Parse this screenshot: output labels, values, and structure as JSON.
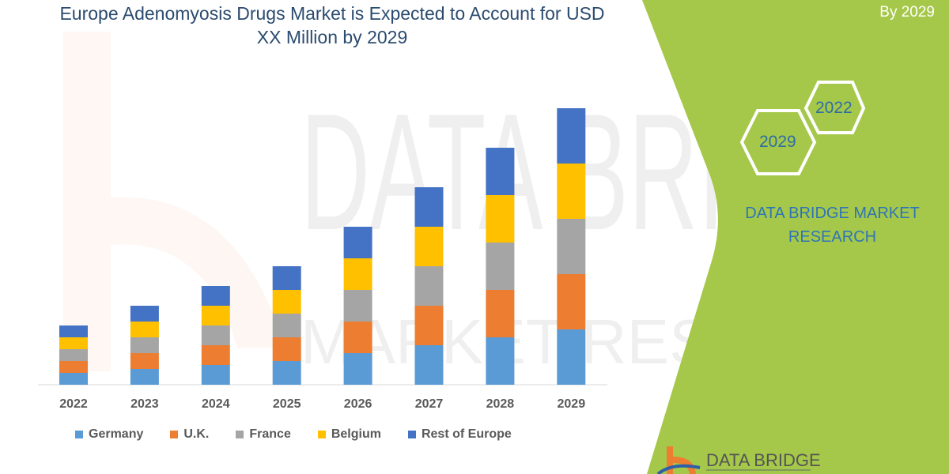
{
  "header": {
    "title_line1": "Europe Adenomyosis Drugs Market is Expected to Account for USD",
    "title_line2": "XX Million by 2029",
    "by_label": "By 2029"
  },
  "side_panel": {
    "hex_years": [
      "2022",
      "2029"
    ],
    "brand": "DATA BRIDGE MARKET RESEARCH",
    "logo_text": "DATA BRIDGE",
    "panel_color": "#a5c84a"
  },
  "chart_data": {
    "type": "bar",
    "stacked": true,
    "title": "Europe Adenomyosis Drugs Market is Expected to Account for USD XX Million by 2029",
    "categories": [
      "2022",
      "2023",
      "2024",
      "2025",
      "2026",
      "2027",
      "2028",
      "2029"
    ],
    "series": [
      {
        "name": "Germany",
        "color": "#5b9bd5",
        "values": [
          15,
          20,
          25,
          30,
          40,
          50,
          60,
          70
        ]
      },
      {
        "name": "U.K.",
        "color": "#ed7d31",
        "values": [
          15,
          20,
          25,
          30,
          40,
          50,
          60,
          70
        ]
      },
      {
        "name": "France",
        "color": "#a5a5a5",
        "values": [
          15,
          20,
          25,
          30,
          40,
          50,
          60,
          70
        ]
      },
      {
        "name": "Belgium",
        "color": "#ffc000",
        "values": [
          15,
          20,
          25,
          30,
          40,
          50,
          60,
          70
        ]
      },
      {
        "name": "Rest of Europe",
        "color": "#4472c4",
        "values": [
          15,
          20,
          25,
          30,
          40,
          50,
          60,
          70
        ]
      }
    ],
    "y_axis_shown": false,
    "grid": false,
    "legend_position": "bottom"
  }
}
